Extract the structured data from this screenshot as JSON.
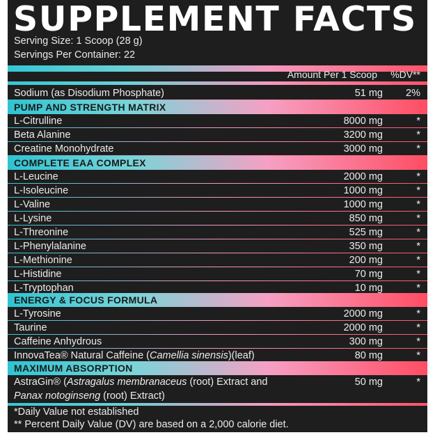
{
  "title": "SUPPLEMENT FACTS",
  "serving_size": "Serving Size: 1 Scoop (28 g)",
  "servings_per_container": "Servings Per Container: 22",
  "header": {
    "amount": "Amount Per 1 Scoop",
    "dv": "%DV**"
  },
  "sodium": {
    "label": "Sodium (as Disodium Phosphate)",
    "amount": "51 mg",
    "dv": "2%"
  },
  "sections": [
    {
      "title": "PUMP AND STRENGTH MATRIX",
      "items": [
        {
          "label": "L-Citrulline",
          "amount": "8000 mg",
          "dv": "*"
        },
        {
          "label": "Beta Alanine",
          "amount": "3200 mg",
          "dv": "*"
        },
        {
          "label": "Creatine Monohydrate",
          "amount": "3000 mg",
          "dv": "*"
        }
      ]
    },
    {
      "title": "COMPLETE EAA COMPLEX",
      "items": [
        {
          "label": "L-Leucine",
          "amount": "2000 mg",
          "dv": "*"
        },
        {
          "label": "L-Isoleucine",
          "amount": "1000 mg",
          "dv": "*"
        },
        {
          "label": "L-Valine",
          "amount": "1000 mg",
          "dv": "*"
        },
        {
          "label": "L-Lysine",
          "amount": "850 mg",
          "dv": "*"
        },
        {
          "label": "L-Threonine",
          "amount": "525 mg",
          "dv": "*"
        },
        {
          "label": "L-Phenylalanine",
          "amount": "350 mg",
          "dv": "*"
        },
        {
          "label": "L-Methionine",
          "amount": "200 mg",
          "dv": "*"
        },
        {
          "label": "L-Histidine",
          "amount": "70 mg",
          "dv": "*"
        },
        {
          "label": "L-Tryptophan",
          "amount": "10 mg",
          "dv": "*"
        }
      ]
    },
    {
      "title": "ENERGY & FOCUS FORMULA",
      "items": [
        {
          "label": "L-Tyrosine",
          "amount": "2000 mg",
          "dv": "*"
        },
        {
          "label": "Taurine",
          "amount": "2000 mg",
          "dv": "*"
        },
        {
          "label": "Caffeine Anhydrous",
          "amount": "300 mg",
          "dv": "*"
        }
      ],
      "innovatea": {
        "prefix": "InnovaTea® Natural Caffeine (",
        "italic": "Camellia sinensis",
        "suffix": ")(leaf)",
        "amount": "80 mg",
        "dv": "*"
      }
    },
    {
      "title": "MAXIMUM ABSORPTION",
      "astragin": {
        "line1_prefix": "AstraGin® (",
        "line1_italic": "Astragalus membranaceus",
        "line1_suffix": " (root) Extract and",
        "line2_italic": "Panax notoginseng",
        "line2_suffix": " (root) Extract)",
        "amount": "50 mg",
        "dv": "*"
      }
    }
  ],
  "footnotes": [
    "*Daily Value not established",
    "** Percent Daily Value (DV) are based on a 2,000 calorie diet."
  ],
  "colors": {
    "background": "#1e1e1e",
    "gradient_start": "#35c7d4",
    "gradient_mid": "#f49ac0",
    "gradient_end": "#ff5368"
  }
}
